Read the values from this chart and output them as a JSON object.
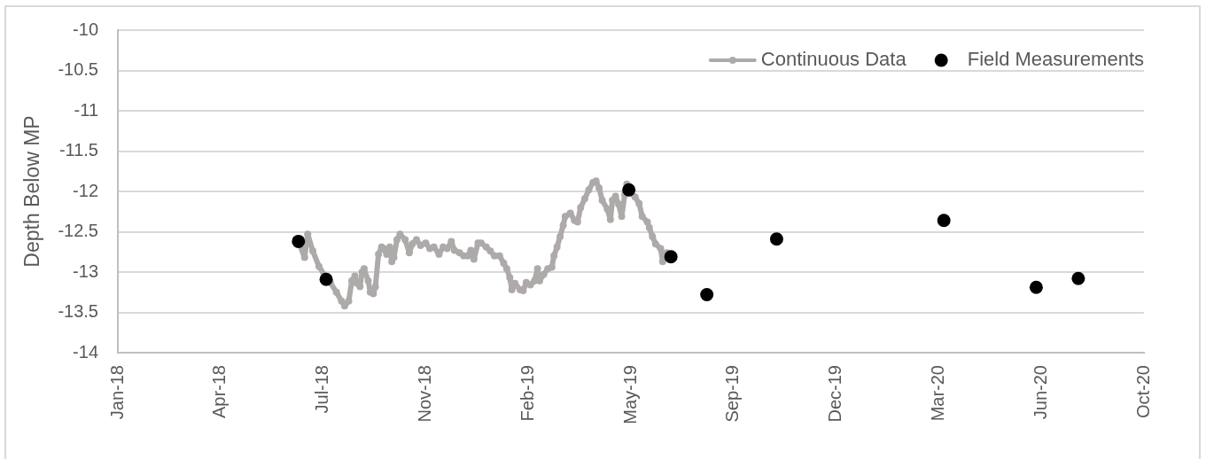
{
  "chart_data": {
    "type": "line",
    "ylabel": "Depth Below MP",
    "xlim": [
      "2018-01-10",
      "2020-10-06"
    ],
    "xticks": [
      {
        "value": "2018-01-10",
        "label": "Jan-18"
      },
      {
        "value": "2018-04-20",
        "label": "Apr-18"
      },
      {
        "value": "2018-07-29",
        "label": "Jul-18"
      },
      {
        "value": "2018-11-06",
        "label": "Nov-18"
      },
      {
        "value": "2019-02-14",
        "label": "Feb-19"
      },
      {
        "value": "2019-05-25",
        "label": "May-19"
      },
      {
        "value": "2019-09-02",
        "label": "Sep-19"
      },
      {
        "value": "2019-12-11",
        "label": "Dec-19"
      },
      {
        "value": "2020-03-20",
        "label": "Mar-20"
      },
      {
        "value": "2020-06-28",
        "label": "Jun-20"
      },
      {
        "value": "2020-10-06",
        "label": "Oct-20"
      }
    ],
    "ylim": [
      -14,
      -10
    ],
    "yticks": [
      -14,
      -13.5,
      -13,
      -12.5,
      -12,
      -11.5,
      -11,
      -10.5,
      -10
    ],
    "grid": "y",
    "legend": "top right",
    "marker": "circle",
    "line_style": "solid",
    "series": [
      {
        "name": "Continuous Data",
        "color": "#aeaaaa",
        "x": [
          "2018-07-06",
          "2018-07-11",
          "2018-07-14",
          "2018-07-19",
          "2018-07-25",
          "2018-07-31",
          "2018-08-05",
          "2018-08-11",
          "2018-08-16",
          "2018-08-19",
          "2018-08-23",
          "2018-08-26",
          "2018-08-29",
          "2018-08-31",
          "2018-09-03",
          "2018-09-05",
          "2018-09-07",
          "2018-09-11",
          "2018-09-13",
          "2018-09-16",
          "2018-09-18",
          "2018-09-21",
          "2018-09-24",
          "2018-09-26",
          "2018-09-29",
          "2018-10-02",
          "2018-10-04",
          "2018-10-06",
          "2018-10-09",
          "2018-10-12",
          "2018-10-17",
          "2018-10-21",
          "2018-10-24",
          "2018-10-28",
          "2018-11-01",
          "2018-11-06",
          "2018-11-10",
          "2018-11-14",
          "2018-11-19",
          "2018-11-23",
          "2018-11-27",
          "2018-12-01",
          "2018-12-04",
          "2018-12-09",
          "2018-12-13",
          "2018-12-17",
          "2018-12-20",
          "2018-12-23",
          "2018-12-27",
          "2018-12-30",
          "2019-01-04",
          "2019-01-08",
          "2019-01-12",
          "2019-01-17",
          "2019-01-21",
          "2019-01-24",
          "2019-01-27",
          "2019-01-29",
          "2019-02-01",
          "2019-02-06",
          "2019-02-09",
          "2019-02-12",
          "2019-02-16",
          "2019-02-20",
          "2019-02-23",
          "2019-02-25",
          "2019-03-01",
          "2019-03-05",
          "2019-03-09",
          "2019-03-11",
          "2019-03-14",
          "2019-03-17",
          "2019-03-20",
          "2019-03-22",
          "2019-03-27",
          "2019-03-31",
          "2019-04-03",
          "2019-04-06",
          "2019-04-10",
          "2019-04-14",
          "2019-04-18",
          "2019-04-21",
          "2019-04-24",
          "2019-04-27",
          "2019-05-02",
          "2019-05-05",
          "2019-05-07",
          "2019-05-10",
          "2019-05-13",
          "2019-05-16",
          "2019-05-19",
          "2019-05-21",
          "2019-05-25",
          "2019-05-29",
          "2019-06-02",
          "2019-06-05",
          "2019-06-10",
          "2019-06-12",
          "2019-06-15",
          "2019-06-18",
          "2019-06-23",
          "2019-06-25",
          "2019-06-29"
        ],
        "values": [
          -12.65,
          -12.82,
          -12.53,
          -12.74,
          -12.93,
          -13.05,
          -13.13,
          -13.25,
          -13.36,
          -13.42,
          -13.36,
          -13.11,
          -13.05,
          -13.14,
          -13.18,
          -13.0,
          -12.96,
          -13.11,
          -13.25,
          -13.27,
          -13.18,
          -12.78,
          -12.69,
          -12.71,
          -12.78,
          -12.69,
          -12.87,
          -12.82,
          -12.6,
          -12.53,
          -12.6,
          -12.76,
          -12.65,
          -12.6,
          -12.67,
          -12.64,
          -12.71,
          -12.69,
          -12.78,
          -12.69,
          -12.71,
          -12.62,
          -12.73,
          -12.76,
          -12.8,
          -12.8,
          -12.73,
          -12.84,
          -12.64,
          -12.64,
          -12.69,
          -12.74,
          -12.8,
          -12.8,
          -12.89,
          -12.96,
          -13.07,
          -13.22,
          -13.14,
          -13.22,
          -13.23,
          -13.13,
          -13.16,
          -13.11,
          -12.96,
          -13.11,
          -13.03,
          -12.96,
          -12.94,
          -12.8,
          -12.69,
          -12.56,
          -12.42,
          -12.31,
          -12.27,
          -12.36,
          -12.38,
          -12.2,
          -12.09,
          -11.98,
          -11.89,
          -11.87,
          -11.96,
          -12.11,
          -12.22,
          -12.35,
          -12.11,
          -12.06,
          -12.16,
          -12.31,
          -12.04,
          -11.91,
          -12.02,
          -12.07,
          -12.15,
          -12.31,
          -12.38,
          -12.45,
          -12.56,
          -12.65,
          -12.71,
          -12.87,
          -12.76
        ]
      },
      {
        "name": "Field Measurements",
        "type": "scatter",
        "color": "#000000",
        "x": [
          "2018-07-05",
          "2018-08-01",
          "2019-05-23",
          "2019-07-03",
          "2019-08-07",
          "2019-10-14",
          "2020-03-25",
          "2020-06-23",
          "2020-08-03"
        ],
        "values": [
          -12.62,
          -13.09,
          -11.98,
          -12.81,
          -13.28,
          -12.59,
          -12.36,
          -13.19,
          -13.08
        ]
      }
    ]
  }
}
